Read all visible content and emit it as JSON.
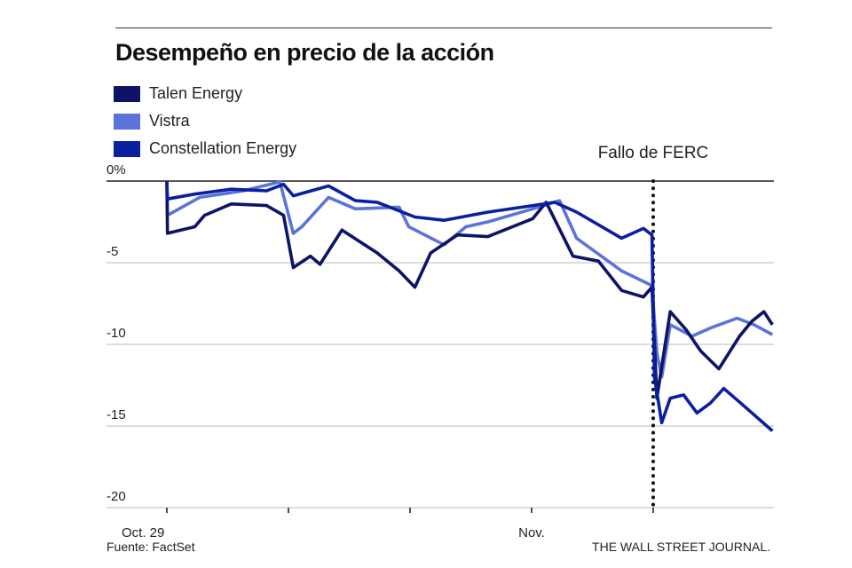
{
  "chart_data": {
    "type": "line",
    "title": "Desempeño en precio de la acción",
    "xlabel": "",
    "ylabel": "",
    "x_units": "trading days since Oct. 29",
    "x_ticks": [
      0,
      1,
      2,
      3,
      4
    ],
    "x_tick_labels": [
      "Oct. 29",
      "",
      "",
      "Nov.",
      ""
    ],
    "y_ticks": [
      0,
      -5,
      -10,
      -15,
      -20
    ],
    "y_tick_labels": [
      "0%",
      "-5",
      "-10",
      "-15",
      "-20"
    ],
    "ylim": [
      -20,
      0
    ],
    "xlim": [
      0,
      4.99
    ],
    "grid": true,
    "legend_position": "top-left",
    "annotation": {
      "label": "Fallo de FERC",
      "x": 4.0
    },
    "series": [
      {
        "name": "Talen Energy",
        "color": "#0d1466",
        "x": [
          0,
          0.005,
          0.23,
          0.31,
          0.53,
          0.82,
          0.96,
          1.04,
          1.18,
          1.26,
          1.44,
          1.73,
          1.91,
          2.04,
          2.17,
          2.39,
          2.64,
          3.01,
          3.12,
          3.34,
          3.55,
          3.74,
          3.92,
          3.99,
          4.03,
          4.14,
          4.27,
          4.39,
          4.54,
          4.71,
          4.81,
          4.91,
          4.98
        ],
        "y": [
          0,
          -3.2,
          -2.8,
          -2.1,
          -1.4,
          -1.5,
          -2.1,
          -5.3,
          -4.6,
          -5.1,
          -3.0,
          -4.4,
          -5.5,
          -6.5,
          -4.4,
          -3.3,
          -3.4,
          -2.3,
          -1.3,
          -4.6,
          -4.9,
          -6.7,
          -7.1,
          -6.5,
          -13.3,
          -8.0,
          -9.1,
          -10.4,
          -11.5,
          -9.5,
          -8.6,
          -8.0,
          -8.8
        ]
      },
      {
        "name": "Vistra",
        "color": "#5b74d9",
        "x": [
          0,
          0.005,
          0.27,
          0.63,
          0.93,
          1.04,
          1.11,
          1.33,
          1.55,
          1.91,
          1.99,
          2.28,
          2.46,
          2.64,
          3.01,
          3.23,
          3.37,
          3.74,
          3.99,
          4.03,
          4.07,
          4.14,
          4.32,
          4.47,
          4.69,
          4.83,
          4.98
        ],
        "y": [
          0,
          -2.1,
          -1.0,
          -0.6,
          -0.05,
          -3.2,
          -2.8,
          -1.0,
          -1.7,
          -1.6,
          -2.8,
          -3.9,
          -2.8,
          -2.5,
          -1.7,
          -1.2,
          -3.5,
          -5.5,
          -6.4,
          -10.5,
          -12.0,
          -8.8,
          -9.5,
          -9.0,
          -8.4,
          -8.8,
          -9.4
        ]
      },
      {
        "name": "Constellation Energy",
        "color": "#0a1fa0",
        "x": [
          0,
          0.005,
          0.23,
          0.53,
          0.82,
          0.96,
          1.04,
          1.33,
          1.55,
          1.73,
          2.04,
          2.28,
          2.64,
          3.01,
          3.19,
          3.37,
          3.74,
          3.92,
          3.99,
          4.01,
          4.07,
          4.14,
          4.25,
          4.36,
          4.47,
          4.58,
          4.72,
          4.98
        ],
        "y": [
          0,
          -1.1,
          -0.8,
          -0.5,
          -0.6,
          -0.2,
          -0.9,
          -0.3,
          -1.2,
          -1.3,
          -2.2,
          -2.4,
          -1.9,
          -1.5,
          -1.3,
          -1.9,
          -3.5,
          -2.9,
          -3.3,
          -12.0,
          -14.8,
          -13.3,
          -13.1,
          -14.2,
          -13.6,
          -12.7,
          -13.6,
          -15.3
        ]
      }
    ]
  },
  "footer": {
    "source": "Fuente: FactSet",
    "publisher": "THE WALL STREET JOURNAL."
  }
}
